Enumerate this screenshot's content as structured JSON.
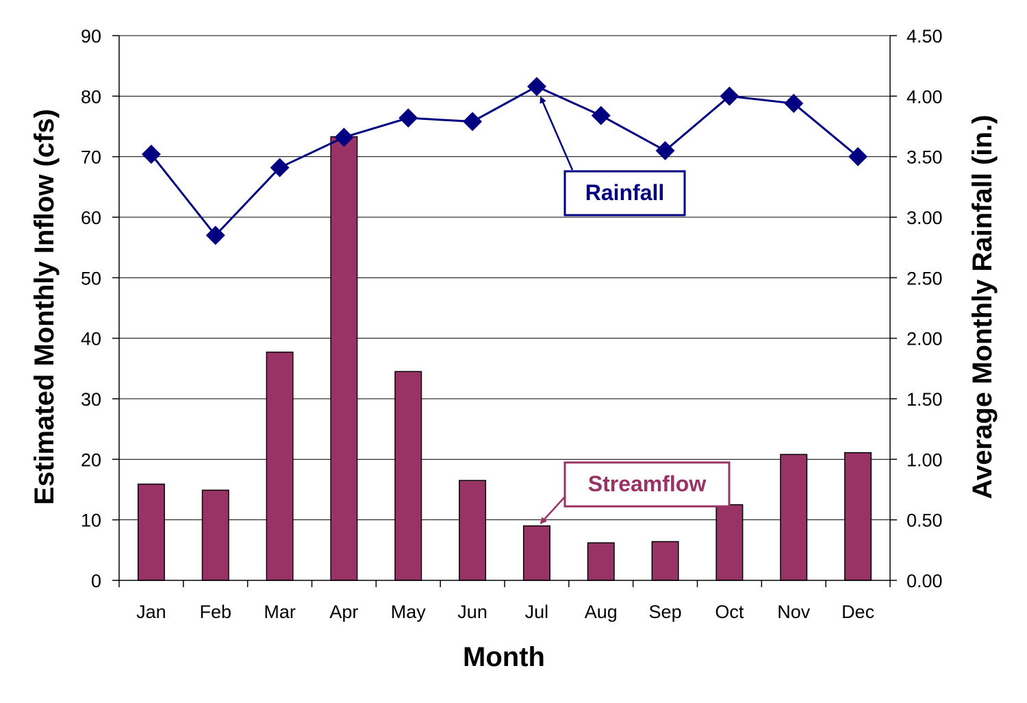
{
  "chart_data": {
    "type": "bar",
    "categories": [
      "Jan",
      "Feb",
      "Mar",
      "Apr",
      "May",
      "Jun",
      "Jul",
      "Aug",
      "Sep",
      "Oct",
      "Nov",
      "Dec"
    ],
    "series": [
      {
        "name": "Streamflow",
        "type": "bar",
        "axis": "left",
        "values": [
          15.9,
          14.9,
          37.7,
          73.3,
          34.5,
          16.5,
          9.0,
          6.2,
          6.4,
          12.5,
          20.8,
          21.1
        ],
        "color": "#993366"
      },
      {
        "name": "Rainfall",
        "type": "line",
        "axis": "right",
        "values": [
          3.52,
          2.85,
          3.41,
          3.66,
          3.82,
          3.79,
          4.08,
          3.84,
          3.55,
          4.0,
          3.94,
          3.5
        ],
        "color": "#000080"
      }
    ],
    "xlabel": "Month",
    "ylabel": "Estimated Monthly Inflow (cfs)",
    "y2label": "Average Monthly Rainfall (in.)",
    "ylim": [
      0,
      90
    ],
    "y2lim": [
      0,
      4.5
    ],
    "yticks": [
      "0",
      "10",
      "20",
      "30",
      "40",
      "50",
      "60",
      "70",
      "80",
      "90"
    ],
    "y2ticks": [
      "0.00",
      "0.50",
      "1.00",
      "1.50",
      "2.00",
      "2.50",
      "3.00",
      "3.50",
      "4.00",
      "4.50"
    ],
    "grid": true,
    "annotations": [
      {
        "text": "Rainfall",
        "series": "Rainfall",
        "point": "Jul"
      },
      {
        "text": "Streamflow",
        "series": "Streamflow",
        "point": "Jul"
      }
    ]
  }
}
